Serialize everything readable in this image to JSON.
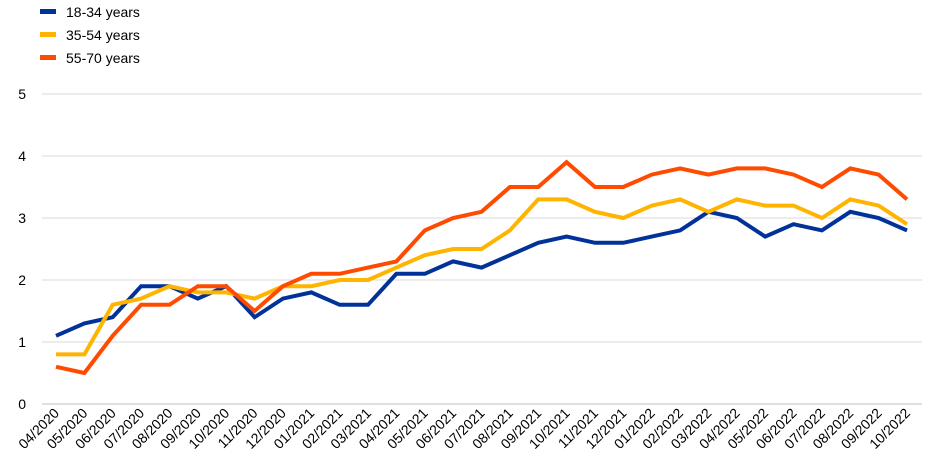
{
  "chart_data": {
    "type": "line",
    "categories": [
      "04/2020",
      "05/2020",
      "06/2020",
      "07/2020",
      "08/2020",
      "09/2020",
      "10/2020",
      "11/2020",
      "12/2020",
      "01/2021",
      "02/2021",
      "03/2021",
      "04/2021",
      "05/2021",
      "06/2021",
      "07/2021",
      "08/2021",
      "09/2021",
      "10/2021",
      "11/2021",
      "12/2021",
      "01/2022",
      "02/2022",
      "03/2022",
      "04/2022",
      "05/2022",
      "06/2022",
      "07/2022",
      "08/2022",
      "09/2022",
      "10/2022"
    ],
    "ylim": [
      0,
      5
    ],
    "yticks": [
      0,
      1,
      2,
      3,
      4,
      5
    ],
    "grid": true,
    "legend_position": "top-left",
    "series": [
      {
        "name": "18-34 years",
        "color": "#003299",
        "values": [
          1.1,
          1.3,
          1.4,
          1.9,
          1.9,
          1.7,
          1.9,
          1.4,
          1.7,
          1.8,
          1.6,
          1.6,
          2.1,
          2.1,
          2.3,
          2.2,
          2.4,
          2.6,
          2.7,
          2.6,
          2.6,
          2.7,
          2.8,
          3.1,
          3.0,
          2.7,
          2.9,
          2.8,
          3.1,
          3.0,
          2.8
        ]
      },
      {
        "name": "35-54 years",
        "color": "#FFB400",
        "values": [
          0.8,
          0.8,
          1.6,
          1.7,
          1.9,
          1.8,
          1.8,
          1.7,
          1.9,
          1.9,
          2.0,
          2.0,
          2.2,
          2.4,
          2.5,
          2.5,
          2.8,
          3.3,
          3.3,
          3.1,
          3.0,
          3.2,
          3.3,
          3.1,
          3.3,
          3.2,
          3.2,
          3.0,
          3.3,
          3.2,
          2.9
        ]
      },
      {
        "name": "55-70 years",
        "color": "#FF4B00",
        "values": [
          0.6,
          0.5,
          1.1,
          1.6,
          1.6,
          1.9,
          1.9,
          1.5,
          1.9,
          2.1,
          2.1,
          2.2,
          2.3,
          2.8,
          3.0,
          3.1,
          3.5,
          3.5,
          3.9,
          3.5,
          3.5,
          3.7,
          3.8,
          3.7,
          3.8,
          3.8,
          3.7,
          3.5,
          3.8,
          3.7,
          3.3
        ]
      }
    ]
  }
}
